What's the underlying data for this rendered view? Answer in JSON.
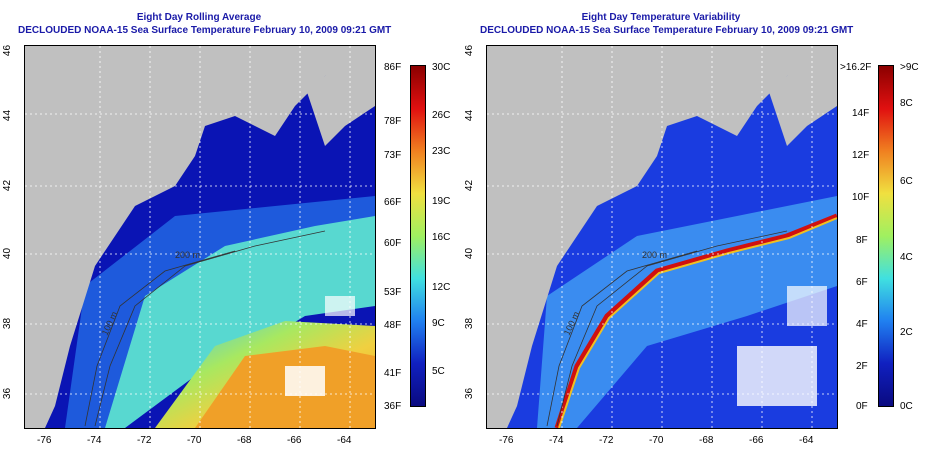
{
  "left_panel": {
    "title_line1": "Eight Day Rolling Average",
    "title_line2": "DECLOUDED NOAA-15 Sea Surface Temperature February 10, 2009 09:21 GMT",
    "colorbar_f": [
      "86F",
      "78F",
      "73F",
      "66F",
      "60F",
      "53F",
      "48F",
      "41F",
      "36F"
    ],
    "colorbar_c": [
      "30C",
      "26C",
      "23C",
      "19C",
      "16C",
      "12C",
      "9C",
      "5C"
    ],
    "depth_labels": [
      "200 m",
      "100 m"
    ]
  },
  "right_panel": {
    "title_line1": "Eight Day Temperature Variability",
    "title_line2": "DECLOUDED NOAA-15 Sea Surface Temperature February 10, 2009 09:21 GMT",
    "colorbar_f": [
      ">16.2F",
      "14F",
      "12F",
      "10F",
      "8F",
      "6F",
      "4F",
      "2F",
      "0F"
    ],
    "colorbar_c": [
      ">9C",
      "8C",
      "6C",
      "4C",
      "2C",
      "0C"
    ],
    "depth_labels": [
      "200 m",
      "100 m"
    ]
  },
  "axes": {
    "lon_ticks": [
      "-76",
      "-74",
      "-72",
      "-70",
      "-68",
      "-66",
      "-64"
    ],
    "lat_ticks": [
      "46",
      "44",
      "42",
      "40",
      "38",
      "36"
    ]
  },
  "colors": {
    "title": "#1a1aa8",
    "land": "#c0c0c0",
    "cold": "#0a14b4",
    "warm": "#f0a020"
  }
}
